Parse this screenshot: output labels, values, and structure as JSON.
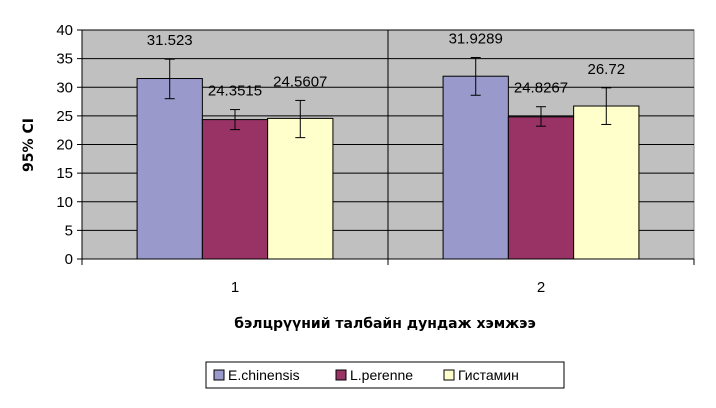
{
  "chart_data": {
    "type": "bar",
    "title": "",
    "xlabel": "бэлцрүүний талбайн дундаж хэмжээ",
    "ylabel": "95% CI",
    "categories": [
      "1",
      "2"
    ],
    "ylim": [
      0,
      40
    ],
    "yticks": [
      0,
      5,
      10,
      15,
      20,
      25,
      30,
      35,
      40
    ],
    "grid": true,
    "legend_position": "bottom",
    "plot_background": "#c0c0c0",
    "series": [
      {
        "name": "E.chinensis",
        "color": "#9999cc",
        "values": [
          31.523,
          31.9289
        ],
        "labels": [
          "31.523",
          "31.9289"
        ],
        "error_low": [
          28.0,
          28.6
        ],
        "error_high": [
          34.9,
          35.2
        ]
      },
      {
        "name": "L.perenne",
        "color": "#993366",
        "values": [
          24.3515,
          24.8267
        ],
        "labels": [
          "24.3515",
          "24.8267"
        ],
        "error_low": [
          22.6,
          23.2
        ],
        "error_high": [
          26.1,
          26.6
        ]
      },
      {
        "name": "Гистамин",
        "color": "#ffffcc",
        "values": [
          24.5607,
          26.72
        ],
        "labels": [
          "24.5607",
          "26.72"
        ],
        "error_low": [
          21.2,
          23.5
        ],
        "error_high": [
          27.7,
          29.9
        ]
      }
    ]
  }
}
